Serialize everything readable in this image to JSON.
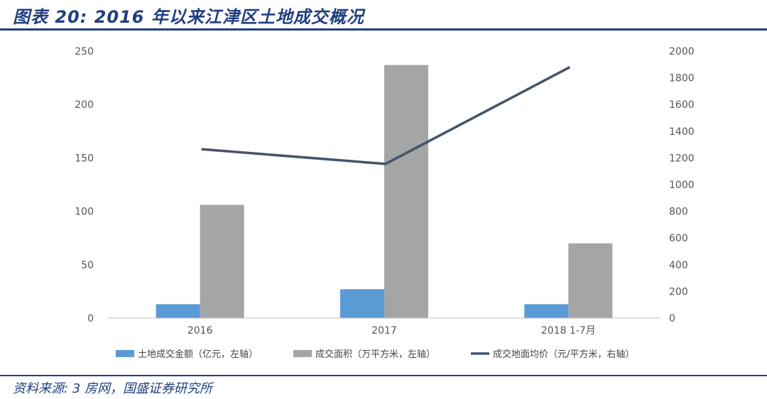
{
  "header": {
    "title": "图表 20: 2016 年以来江津区土地成交概况"
  },
  "footer": {
    "source": "资料来源: 3 房网，国盛证券研究所"
  },
  "chart_data": {
    "type": "bar",
    "title": "图表 20: 2016 年以来江津区土地成交概况",
    "categories": [
      "2016",
      "2017",
      "2018 1-7月"
    ],
    "series": [
      {
        "name": "土地成交金额（亿元，左轴）",
        "type": "bar",
        "axis": "left",
        "color": "#5b9bd5",
        "values": [
          13,
          27,
          13
        ]
      },
      {
        "name": "成交面积（万平方米，左轴）",
        "type": "bar",
        "axis": "left",
        "color": "#a5a5a5",
        "values": [
          106,
          237,
          70
        ]
      },
      {
        "name": "成交地面均价（元/平方米，右轴）",
        "type": "line",
        "axis": "right",
        "color": "#44546a",
        "values": [
          1265,
          1155,
          1880
        ]
      }
    ],
    "y_left": {
      "min": 0,
      "max": 250,
      "ticks": [
        "0",
        "50",
        "100",
        "150",
        "200",
        "250"
      ]
    },
    "y_right": {
      "min": 0,
      "max": 2000,
      "ticks": [
        "0",
        "200",
        "400",
        "600",
        "800",
        "1000",
        "1200",
        "1400",
        "1600",
        "1800",
        "2000"
      ]
    },
    "grid": false,
    "legend": "bottom"
  }
}
